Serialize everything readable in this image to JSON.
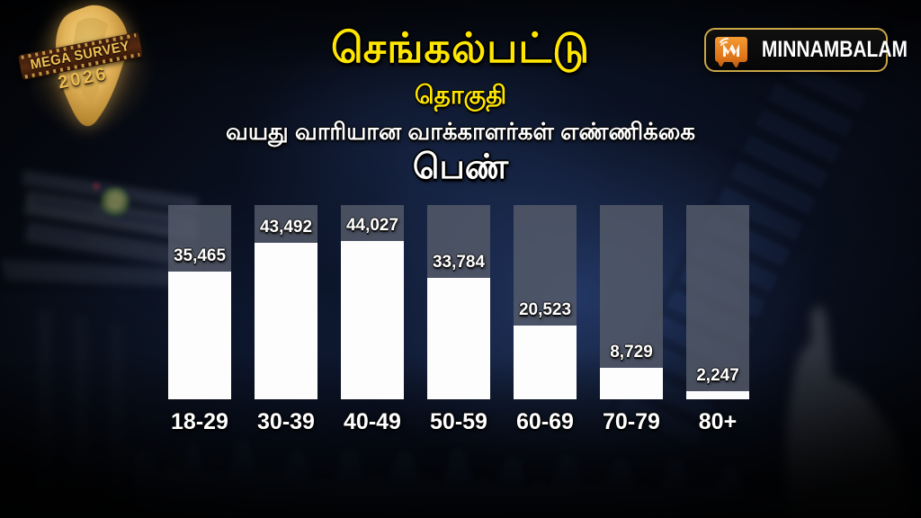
{
  "badge": {
    "title": "MEGA SURVEY",
    "year": "2026"
  },
  "logo": {
    "name": "MINNAMBALAM"
  },
  "header": {
    "constituency": "செங்கல்பட்டு",
    "constituency_word": "தொகுதி"
  },
  "chart_data": {
    "type": "bar",
    "title": "வயது வாரியான வாக்காளர்கள் எண்ணிக்கை",
    "subtitle": "பெண்",
    "categories": [
      "18-29",
      "30-39",
      "40-49",
      "50-59",
      "60-69",
      "70-79",
      "80+"
    ],
    "values": [
      35465,
      43492,
      44027,
      33784,
      20523,
      8729,
      2247
    ],
    "value_labels": [
      "35,465",
      "43,492",
      "44,027",
      "33,784",
      "20,523",
      "8,729",
      "2,247"
    ],
    "xlabel": "",
    "ylabel": "",
    "ylim": [
      0,
      54000
    ],
    "grid": false,
    "legend": false,
    "bar_color": "#fdfdfd",
    "track_color": "rgba(86,92,106,0.82)"
  },
  "colors": {
    "accent_yellow": "#ffe600",
    "text_white": "#ffffff",
    "background": "#04060c",
    "logo_border_gold": "#c9a646",
    "logo_icon_orange": "#e8841f"
  }
}
